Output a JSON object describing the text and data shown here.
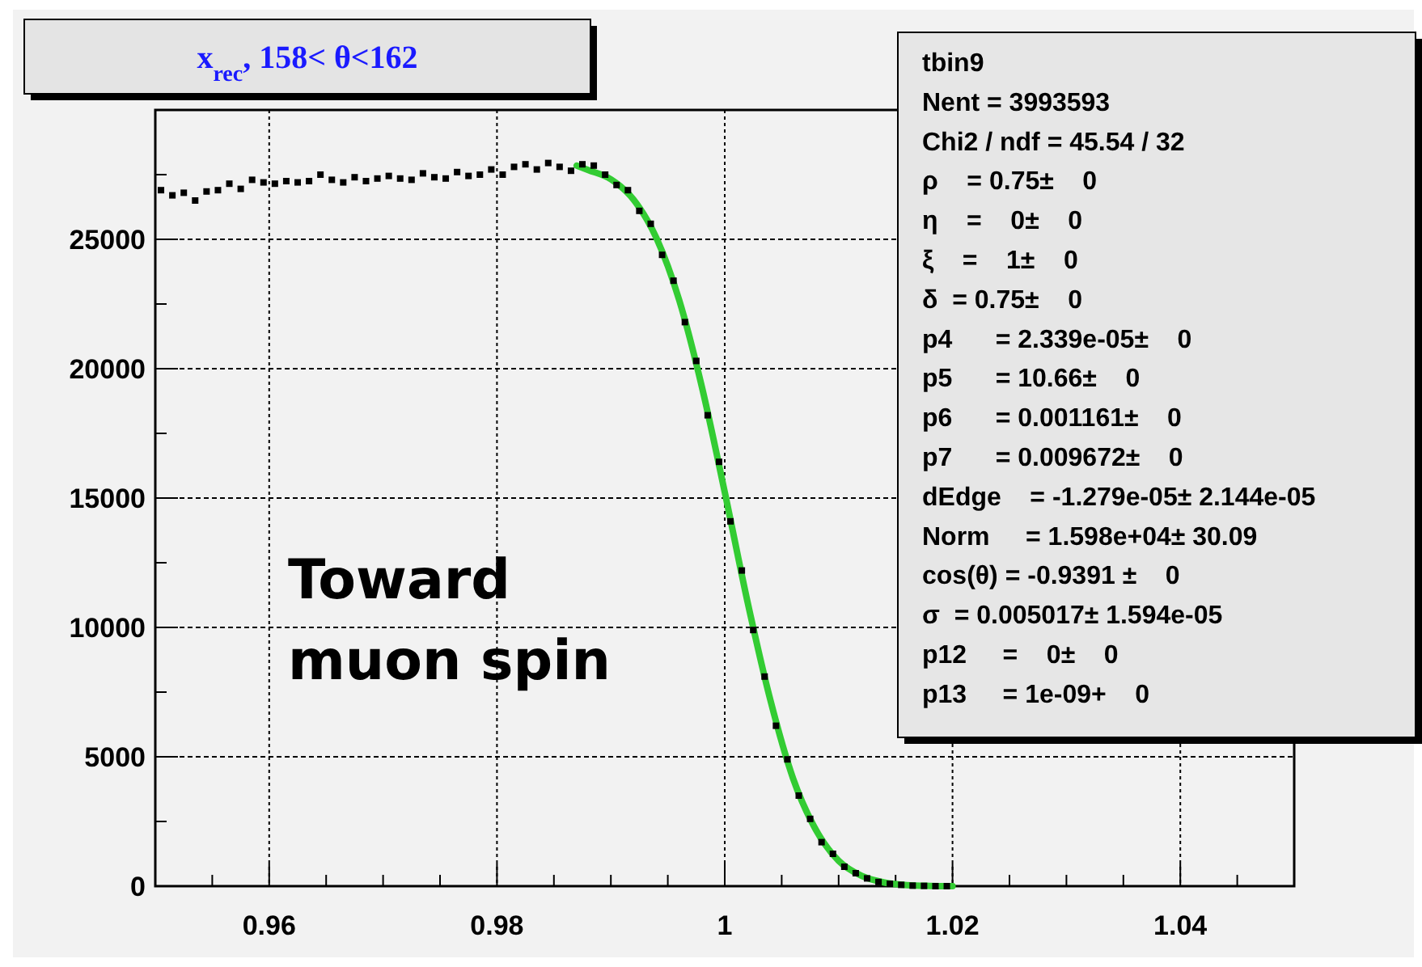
{
  "chart_data": {
    "type": "scatter",
    "title": "x$_{rec}$, 158< θ<162",
    "xlim": [
      0.95,
      1.05
    ],
    "xticks": [
      {
        "value": 0.955,
        "label": null
      },
      0.96,
      {
        "value": 0.965,
        "label": null
      },
      {
        "value": 0.97,
        "label": null
      },
      {
        "value": 0.975,
        "label": null
      },
      0.98,
      {
        "value": 0.985,
        "label": null
      },
      {
        "value": 0.99,
        "label": null
      },
      {
        "value": 0.995,
        "label": null
      },
      1,
      {
        "value": 1.005,
        "label": null
      },
      {
        "value": 1.01,
        "label": null
      },
      {
        "value": 1.015,
        "label": null
      },
      1.02,
      {
        "value": 1.025,
        "label": null
      },
      {
        "value": 1.03,
        "label": null
      },
      {
        "value": 1.035,
        "label": null
      },
      1.04,
      {
        "value": 1.045,
        "label": null
      }
    ],
    "ylim": [
      0,
      30000
    ],
    "yticks": [
      0,
      {
        "value": 2500,
        "label": null
      },
      5000,
      {
        "value": 7500,
        "label": null
      },
      10000,
      {
        "value": 12500,
        "label": null
      },
      15000,
      {
        "value": 17500,
        "label": null
      },
      20000,
      {
        "value": 22500,
        "label": null
      },
      25000,
      {
        "value": 27500,
        "label": null
      }
    ],
    "grid": true,
    "series": [
      {
        "marker": "square",
        "color": "#000000",
        "x": [
          0.9505,
          0.9515,
          0.9525,
          0.9535,
          0.9545,
          0.9555,
          0.9565,
          0.9575,
          0.9585,
          0.9595,
          0.9605,
          0.9615,
          0.9625,
          0.9635,
          0.9645,
          0.9655,
          0.9665,
          0.9675,
          0.9685,
          0.9695,
          0.9705,
          0.9715,
          0.9725,
          0.9735,
          0.9745,
          0.9755,
          0.9765,
          0.9775,
          0.9785,
          0.9795,
          0.9805,
          0.9815,
          0.9825,
          0.9835,
          0.9845,
          0.9855,
          0.9865,
          0.9875,
          0.9885,
          0.9895,
          0.9905,
          0.9915,
          0.9925,
          0.9935,
          0.9945,
          0.9955,
          0.9965,
          0.9975,
          0.9985,
          0.9995,
          1.0005,
          1.0015,
          1.0025,
          1.0035,
          1.0045,
          1.0055,
          1.0065,
          1.0075,
          1.0085,
          1.0095,
          1.0105,
          1.0115,
          1.0125,
          1.0135,
          1.0145,
          1.0155,
          1.0165,
          1.0175,
          1.0185,
          1.0195
        ],
        "values": [
          26900,
          26700,
          26800,
          26500,
          26850,
          26900,
          27150,
          26950,
          27300,
          27200,
          27150,
          27250,
          27200,
          27250,
          27500,
          27300,
          27200,
          27400,
          27250,
          27350,
          27450,
          27350,
          27300,
          27550,
          27400,
          27350,
          27600,
          27450,
          27500,
          27700,
          27500,
          27800,
          27900,
          27700,
          27950,
          27800,
          27650,
          27900,
          27850,
          27500,
          27100,
          26900,
          26100,
          25600,
          24400,
          23400,
          21800,
          20300,
          18200,
          16400,
          14100,
          12200,
          9900,
          8100,
          6200,
          4900,
          3500,
          2600,
          1700,
          1250,
          750,
          500,
          300,
          160,
          90,
          50,
          20,
          10,
          0,
          0
        ]
      },
      {
        "type": "line",
        "color": "#33cc33",
        "x": [
          0.987,
          0.988,
          0.99,
          0.992,
          0.994,
          0.996,
          0.998,
          1.0,
          1.002,
          1.004,
          1.006,
          1.008,
          1.01,
          1.012,
          1.014,
          1.016,
          1.018,
          1.02
        ],
        "values": [
          27850,
          27680,
          27320,
          26530,
          25050,
          22650,
          19280,
          15230,
          10990,
          7200,
          4160,
          2180,
          980,
          400,
          140,
          40,
          10,
          0
        ]
      }
    ],
    "annotations": [
      "tbin9",
      "Nent = 3993593",
      "Chi2 / ndf = 45.54 / 32",
      "ρ    = 0.75±    0",
      "η    =    0±    0",
      "ξ    =    1±    0",
      "δ  = 0.75±    0",
      "p4      = 2.339e-05±    0",
      "p5      = 10.66±    0",
      "p6      = 0.001161±    0",
      "p7      = 0.009672±    0",
      "dEdge    = -1.279e-05± 2.144e-05",
      "Norm     = 1.598e+04± 30.09",
      "cos(θ) = -0.9391 ±    0",
      "σ  = 0.005017± 1.594e-05",
      "p12     =    0±    0",
      "p13     = 1e-09+    0",
      "Toward\nmuon spin"
    ]
  }
}
